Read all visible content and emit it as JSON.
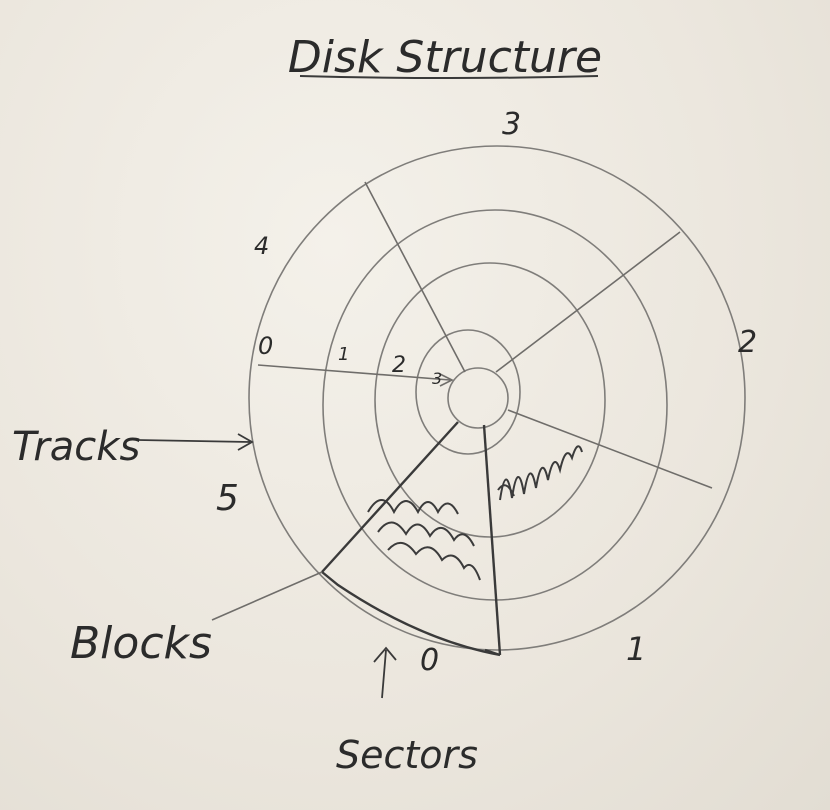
{
  "title": "Disk Structure",
  "labels": {
    "tracks": "Tracks",
    "blocks": "Blocks",
    "sectors": "Sectors"
  },
  "sector_numbers": [
    "0",
    "1",
    "2",
    "3",
    "4",
    "5"
  ],
  "track_numbers": [
    "0",
    "1",
    "2",
    "3"
  ],
  "colors": {
    "ink": "#2b2b2b",
    "pencil": "#7f7d7a",
    "board": "#ece8e0"
  }
}
